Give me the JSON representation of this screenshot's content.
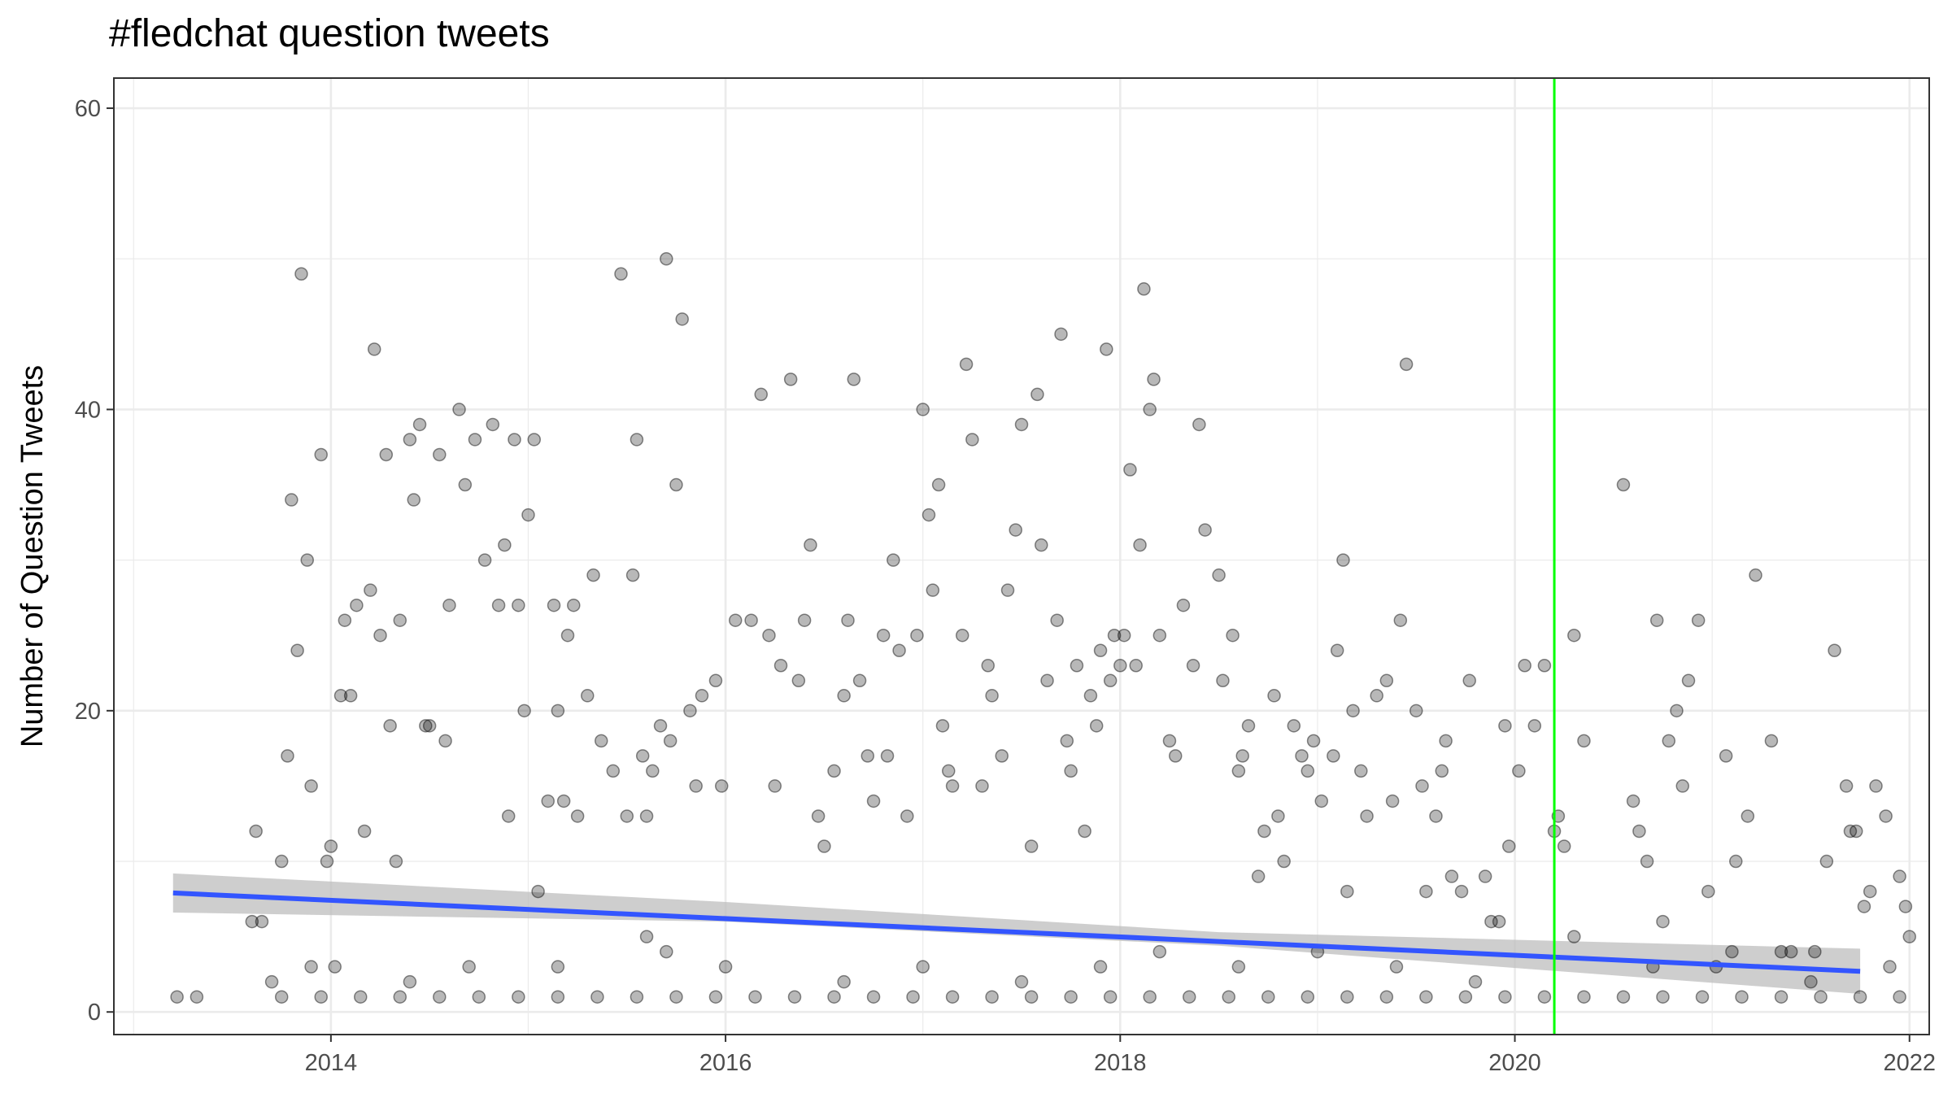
{
  "chart_data": {
    "type": "scatter",
    "title": "#fledchat question tweets",
    "xlabel": "",
    "ylabel": "Number of Question Tweets",
    "xlim": [
      2012.9,
      2022.1
    ],
    "ylim": [
      -1.5,
      62
    ],
    "x_ticks": [
      2014,
      2016,
      2018,
      2020,
      2022
    ],
    "x_tick_labels": [
      "2014",
      "2016",
      "2018",
      "2020",
      "2022"
    ],
    "y_ticks": [
      0,
      20,
      40,
      60
    ],
    "y_tick_labels": [
      "0",
      "20",
      "40",
      "60"
    ],
    "grid": true,
    "legend": "none",
    "colors": {
      "points": "#000000",
      "trend": "#3355ff",
      "ribbon": "#bebebe",
      "vline": "#00ff00",
      "grid": "#ebebeb",
      "panel_border": "#333333"
    },
    "vline_x": 2020.2,
    "trend": {
      "x": [
        2013.2,
        2021.75
      ],
      "y": [
        7.9,
        2.7
      ]
    },
    "ribbon": {
      "x": [
        2013.2,
        2016,
        2018.5,
        2021.75
      ],
      "lower": [
        6.6,
        6.0,
        4.4,
        1.2
      ],
      "upper": [
        9.2,
        7.3,
        5.3,
        4.2
      ]
    },
    "points": [
      [
        2013.22,
        1
      ],
      [
        2013.32,
        1
      ],
      [
        2013.6,
        6
      ],
      [
        2013.62,
        12
      ],
      [
        2013.65,
        6
      ],
      [
        2013.75,
        10
      ],
      [
        2013.78,
        17
      ],
      [
        2013.8,
        34
      ],
      [
        2013.83,
        24
      ],
      [
        2013.85,
        49
      ],
      [
        2013.88,
        30
      ],
      [
        2013.9,
        15
      ],
      [
        2013.95,
        37
      ],
      [
        2013.98,
        10
      ],
      [
        2014.0,
        11
      ],
      [
        2014.05,
        21
      ],
      [
        2014.07,
        26
      ],
      [
        2014.1,
        21
      ],
      [
        2014.13,
        27
      ],
      [
        2014.17,
        12
      ],
      [
        2014.2,
        28
      ],
      [
        2014.22,
        44
      ],
      [
        2014.25,
        25
      ],
      [
        2014.28,
        37
      ],
      [
        2014.3,
        19
      ],
      [
        2014.33,
        10
      ],
      [
        2014.35,
        26
      ],
      [
        2014.4,
        38
      ],
      [
        2014.42,
        34
      ],
      [
        2014.45,
        39
      ],
      [
        2014.48,
        19
      ],
      [
        2014.5,
        19
      ],
      [
        2014.55,
        37
      ],
      [
        2014.58,
        18
      ],
      [
        2014.6,
        27
      ],
      [
        2014.65,
        40
      ],
      [
        2014.68,
        35
      ],
      [
        2014.73,
        38
      ],
      [
        2014.78,
        30
      ],
      [
        2014.82,
        39
      ],
      [
        2014.85,
        27
      ],
      [
        2014.88,
        31
      ],
      [
        2014.9,
        13
      ],
      [
        2014.95,
        27
      ],
      [
        2014.93,
        38
      ],
      [
        2014.98,
        20
      ],
      [
        2015.0,
        33
      ],
      [
        2015.03,
        38
      ],
      [
        2015.05,
        8
      ],
      [
        2015.1,
        14
      ],
      [
        2015.13,
        27
      ],
      [
        2015.15,
        20
      ],
      [
        2015.18,
        14
      ],
      [
        2015.2,
        25
      ],
      [
        2015.23,
        27
      ],
      [
        2015.25,
        13
      ],
      [
        2015.3,
        21
      ],
      [
        2015.33,
        29
      ],
      [
        2015.37,
        18
      ],
      [
        2015.43,
        16
      ],
      [
        2015.47,
        49
      ],
      [
        2015.5,
        13
      ],
      [
        2015.53,
        29
      ],
      [
        2015.55,
        38
      ],
      [
        2015.58,
        17
      ],
      [
        2015.6,
        13
      ],
      [
        2015.63,
        16
      ],
      [
        2015.67,
        19
      ],
      [
        2015.7,
        50
      ],
      [
        2015.72,
        18
      ],
      [
        2015.75,
        35
      ],
      [
        2015.78,
        46
      ],
      [
        2015.82,
        20
      ],
      [
        2015.85,
        15
      ],
      [
        2015.88,
        21
      ],
      [
        2015.95,
        22
      ],
      [
        2015.98,
        15
      ],
      [
        2016.05,
        26
      ],
      [
        2016.13,
        26
      ],
      [
        2016.18,
        41
      ],
      [
        2016.22,
        25
      ],
      [
        2016.25,
        15
      ],
      [
        2016.28,
        23
      ],
      [
        2016.33,
        42
      ],
      [
        2016.37,
        22
      ],
      [
        2016.4,
        26
      ],
      [
        2016.43,
        31
      ],
      [
        2016.47,
        13
      ],
      [
        2016.5,
        11
      ],
      [
        2016.55,
        16
      ],
      [
        2016.6,
        21
      ],
      [
        2016.62,
        26
      ],
      [
        2016.65,
        42
      ],
      [
        2016.68,
        22
      ],
      [
        2016.72,
        17
      ],
      [
        2016.75,
        14
      ],
      [
        2016.8,
        25
      ],
      [
        2016.82,
        17
      ],
      [
        2016.85,
        30
      ],
      [
        2016.88,
        24
      ],
      [
        2016.92,
        13
      ],
      [
        2016.97,
        25
      ],
      [
        2017.0,
        40
      ],
      [
        2017.03,
        33
      ],
      [
        2017.05,
        28
      ],
      [
        2017.08,
        35
      ],
      [
        2017.1,
        19
      ],
      [
        2017.13,
        16
      ],
      [
        2017.15,
        15
      ],
      [
        2017.2,
        25
      ],
      [
        2017.22,
        43
      ],
      [
        2017.25,
        38
      ],
      [
        2017.3,
        15
      ],
      [
        2017.33,
        23
      ],
      [
        2017.35,
        21
      ],
      [
        2017.4,
        17
      ],
      [
        2017.43,
        28
      ],
      [
        2017.47,
        32
      ],
      [
        2017.5,
        39
      ],
      [
        2017.55,
        11
      ],
      [
        2017.58,
        41
      ],
      [
        2017.6,
        31
      ],
      [
        2017.63,
        22
      ],
      [
        2017.68,
        26
      ],
      [
        2017.7,
        45
      ],
      [
        2017.73,
        18
      ],
      [
        2017.75,
        16
      ],
      [
        2017.78,
        23
      ],
      [
        2017.82,
        12
      ],
      [
        2017.85,
        21
      ],
      [
        2017.88,
        19
      ],
      [
        2017.9,
        24
      ],
      [
        2017.93,
        44
      ],
      [
        2017.95,
        22
      ],
      [
        2017.97,
        25
      ],
      [
        2018.0,
        23
      ],
      [
        2018.02,
        25
      ],
      [
        2018.05,
        36
      ],
      [
        2018.08,
        23
      ],
      [
        2018.1,
        31
      ],
      [
        2018.12,
        48
      ],
      [
        2018.15,
        40
      ],
      [
        2018.17,
        42
      ],
      [
        2018.2,
        25
      ],
      [
        2018.25,
        18
      ],
      [
        2018.28,
        17
      ],
      [
        2018.32,
        27
      ],
      [
        2018.37,
        23
      ],
      [
        2018.4,
        39
      ],
      [
        2018.43,
        32
      ],
      [
        2018.5,
        29
      ],
      [
        2018.52,
        22
      ],
      [
        2018.57,
        25
      ],
      [
        2018.6,
        16
      ],
      [
        2018.62,
        17
      ],
      [
        2018.65,
        19
      ],
      [
        2018.7,
        9
      ],
      [
        2018.73,
        12
      ],
      [
        2018.78,
        21
      ],
      [
        2018.8,
        13
      ],
      [
        2018.83,
        10
      ],
      [
        2018.88,
        19
      ],
      [
        2018.92,
        17
      ],
      [
        2018.95,
        16
      ],
      [
        2018.98,
        18
      ],
      [
        2019.02,
        14
      ],
      [
        2019.08,
        17
      ],
      [
        2019.1,
        24
      ],
      [
        2019.13,
        30
      ],
      [
        2019.15,
        8
      ],
      [
        2019.18,
        20
      ],
      [
        2019.22,
        16
      ],
      [
        2019.25,
        13
      ],
      [
        2019.3,
        21
      ],
      [
        2019.35,
        22
      ],
      [
        2019.38,
        14
      ],
      [
        2019.42,
        26
      ],
      [
        2019.45,
        43
      ],
      [
        2019.5,
        20
      ],
      [
        2019.53,
        15
      ],
      [
        2019.55,
        8
      ],
      [
        2019.6,
        13
      ],
      [
        2019.63,
        16
      ],
      [
        2019.65,
        18
      ],
      [
        2019.68,
        9
      ],
      [
        2019.73,
        8
      ],
      [
        2019.77,
        22
      ],
      [
        2019.85,
        9
      ],
      [
        2019.88,
        6
      ],
      [
        2019.92,
        6
      ],
      [
        2019.95,
        19
      ],
      [
        2019.97,
        11
      ],
      [
        2020.02,
        16
      ],
      [
        2020.05,
        23
      ],
      [
        2020.1,
        19
      ],
      [
        2020.15,
        23
      ],
      [
        2020.2,
        12
      ],
      [
        2020.22,
        13
      ],
      [
        2020.25,
        11
      ],
      [
        2020.3,
        25
      ],
      [
        2020.35,
        18
      ],
      [
        2020.55,
        35
      ],
      [
        2020.6,
        14
      ],
      [
        2020.63,
        12
      ],
      [
        2020.67,
        10
      ],
      [
        2020.72,
        26
      ],
      [
        2020.75,
        6
      ],
      [
        2020.78,
        18
      ],
      [
        2020.82,
        20
      ],
      [
        2020.85,
        15
      ],
      [
        2020.88,
        22
      ],
      [
        2020.93,
        26
      ],
      [
        2020.98,
        8
      ],
      [
        2021.02,
        3
      ],
      [
        2021.07,
        17
      ],
      [
        2021.12,
        10
      ],
      [
        2021.18,
        13
      ],
      [
        2021.22,
        29
      ],
      [
        2021.3,
        18
      ],
      [
        2021.35,
        4
      ],
      [
        2021.4,
        4
      ],
      [
        2021.52,
        4
      ],
      [
        2021.58,
        10
      ],
      [
        2021.62,
        24
      ],
      [
        2021.68,
        15
      ],
      [
        2021.7,
        12
      ],
      [
        2021.73,
        12
      ],
      [
        2021.77,
        7
      ],
      [
        2021.8,
        8
      ],
      [
        2021.83,
        15
      ],
      [
        2021.88,
        13
      ],
      [
        2021.95,
        9
      ],
      [
        2021.98,
        7
      ],
      [
        2022.0,
        5
      ],
      [
        2013.7,
        2
      ],
      [
        2013.9,
        3
      ],
      [
        2014.02,
        3
      ],
      [
        2014.4,
        2
      ],
      [
        2014.7,
        3
      ],
      [
        2015.15,
        3
      ],
      [
        2015.6,
        5
      ],
      [
        2015.7,
        4
      ],
      [
        2016.0,
        3
      ],
      [
        2016.6,
        2
      ],
      [
        2017.0,
        3
      ],
      [
        2017.5,
        2
      ],
      [
        2017.9,
        3
      ],
      [
        2018.2,
        4
      ],
      [
        2018.6,
        3
      ],
      [
        2019.0,
        4
      ],
      [
        2019.4,
        3
      ],
      [
        2019.8,
        2
      ],
      [
        2020.3,
        5
      ],
      [
        2020.7,
        3
      ],
      [
        2021.1,
        4
      ],
      [
        2021.5,
        2
      ],
      [
        2021.9,
        3
      ],
      [
        2013.75,
        1
      ],
      [
        2013.95,
        1
      ],
      [
        2014.15,
        1
      ],
      [
        2014.35,
        1
      ],
      [
        2014.55,
        1
      ],
      [
        2014.75,
        1
      ],
      [
        2014.95,
        1
      ],
      [
        2015.15,
        1
      ],
      [
        2015.35,
        1
      ],
      [
        2015.55,
        1
      ],
      [
        2015.75,
        1
      ],
      [
        2015.95,
        1
      ],
      [
        2016.15,
        1
      ],
      [
        2016.35,
        1
      ],
      [
        2016.55,
        1
      ],
      [
        2016.75,
        1
      ],
      [
        2016.95,
        1
      ],
      [
        2017.15,
        1
      ],
      [
        2017.35,
        1
      ],
      [
        2017.55,
        1
      ],
      [
        2017.75,
        1
      ],
      [
        2017.95,
        1
      ],
      [
        2018.15,
        1
      ],
      [
        2018.35,
        1
      ],
      [
        2018.55,
        1
      ],
      [
        2018.75,
        1
      ],
      [
        2018.95,
        1
      ],
      [
        2019.15,
        1
      ],
      [
        2019.35,
        1
      ],
      [
        2019.55,
        1
      ],
      [
        2019.75,
        1
      ],
      [
        2019.95,
        1
      ],
      [
        2020.15,
        1
      ],
      [
        2020.35,
        1
      ],
      [
        2020.55,
        1
      ],
      [
        2020.75,
        1
      ],
      [
        2020.95,
        1
      ],
      [
        2021.15,
        1
      ],
      [
        2021.35,
        1
      ],
      [
        2021.55,
        1
      ],
      [
        2021.75,
        1
      ],
      [
        2021.95,
        1
      ]
    ]
  }
}
